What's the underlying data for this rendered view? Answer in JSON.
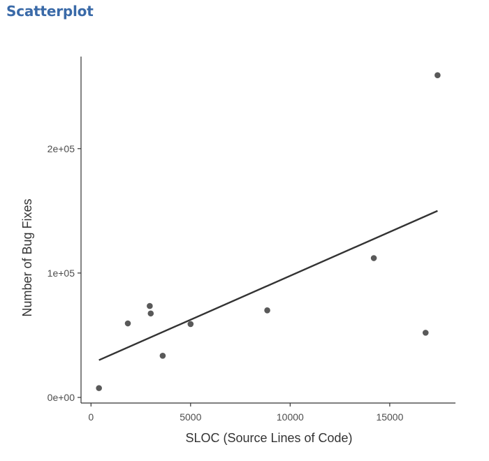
{
  "page": {
    "heading": "Scatterplot"
  },
  "chart_data": {
    "type": "scatter",
    "title": "",
    "xlabel": "SLOC (Source Lines of Code)",
    "ylabel": "Number of Bug Fixes",
    "xlim": [
      -500,
      18300
    ],
    "ylim": [
      -4500,
      274000
    ],
    "x_ticks": [
      0,
      5000,
      10000,
      15000
    ],
    "x_tick_labels": [
      "0",
      "5000",
      "10000",
      "15000"
    ],
    "y_ticks": [
      0,
      100000,
      200000
    ],
    "y_tick_labels": [
      "0e+00",
      "1e+05",
      "2e+05"
    ],
    "grid": false,
    "legend": "none",
    "series": [
      {
        "points": [
          {
            "x": 400,
            "y": 7500
          },
          {
            "x": 1850,
            "y": 59500
          },
          {
            "x": 2950,
            "y": 73500
          },
          {
            "x": 3000,
            "y": 67500
          },
          {
            "x": 3600,
            "y": 33500
          },
          {
            "x": 5000,
            "y": 59000
          },
          {
            "x": 8850,
            "y": 70000
          },
          {
            "x": 14200,
            "y": 112000
          },
          {
            "x": 16800,
            "y": 52000
          },
          {
            "x": 17400,
            "y": 259000
          }
        ]
      }
    ],
    "trend_line": {
      "x": [
        400,
        17400
      ],
      "y": [
        30000,
        150000
      ]
    },
    "colors": {
      "point": "#595959",
      "trend": "#333333",
      "axis": "#333333",
      "heading": "#3a6aa8"
    }
  }
}
